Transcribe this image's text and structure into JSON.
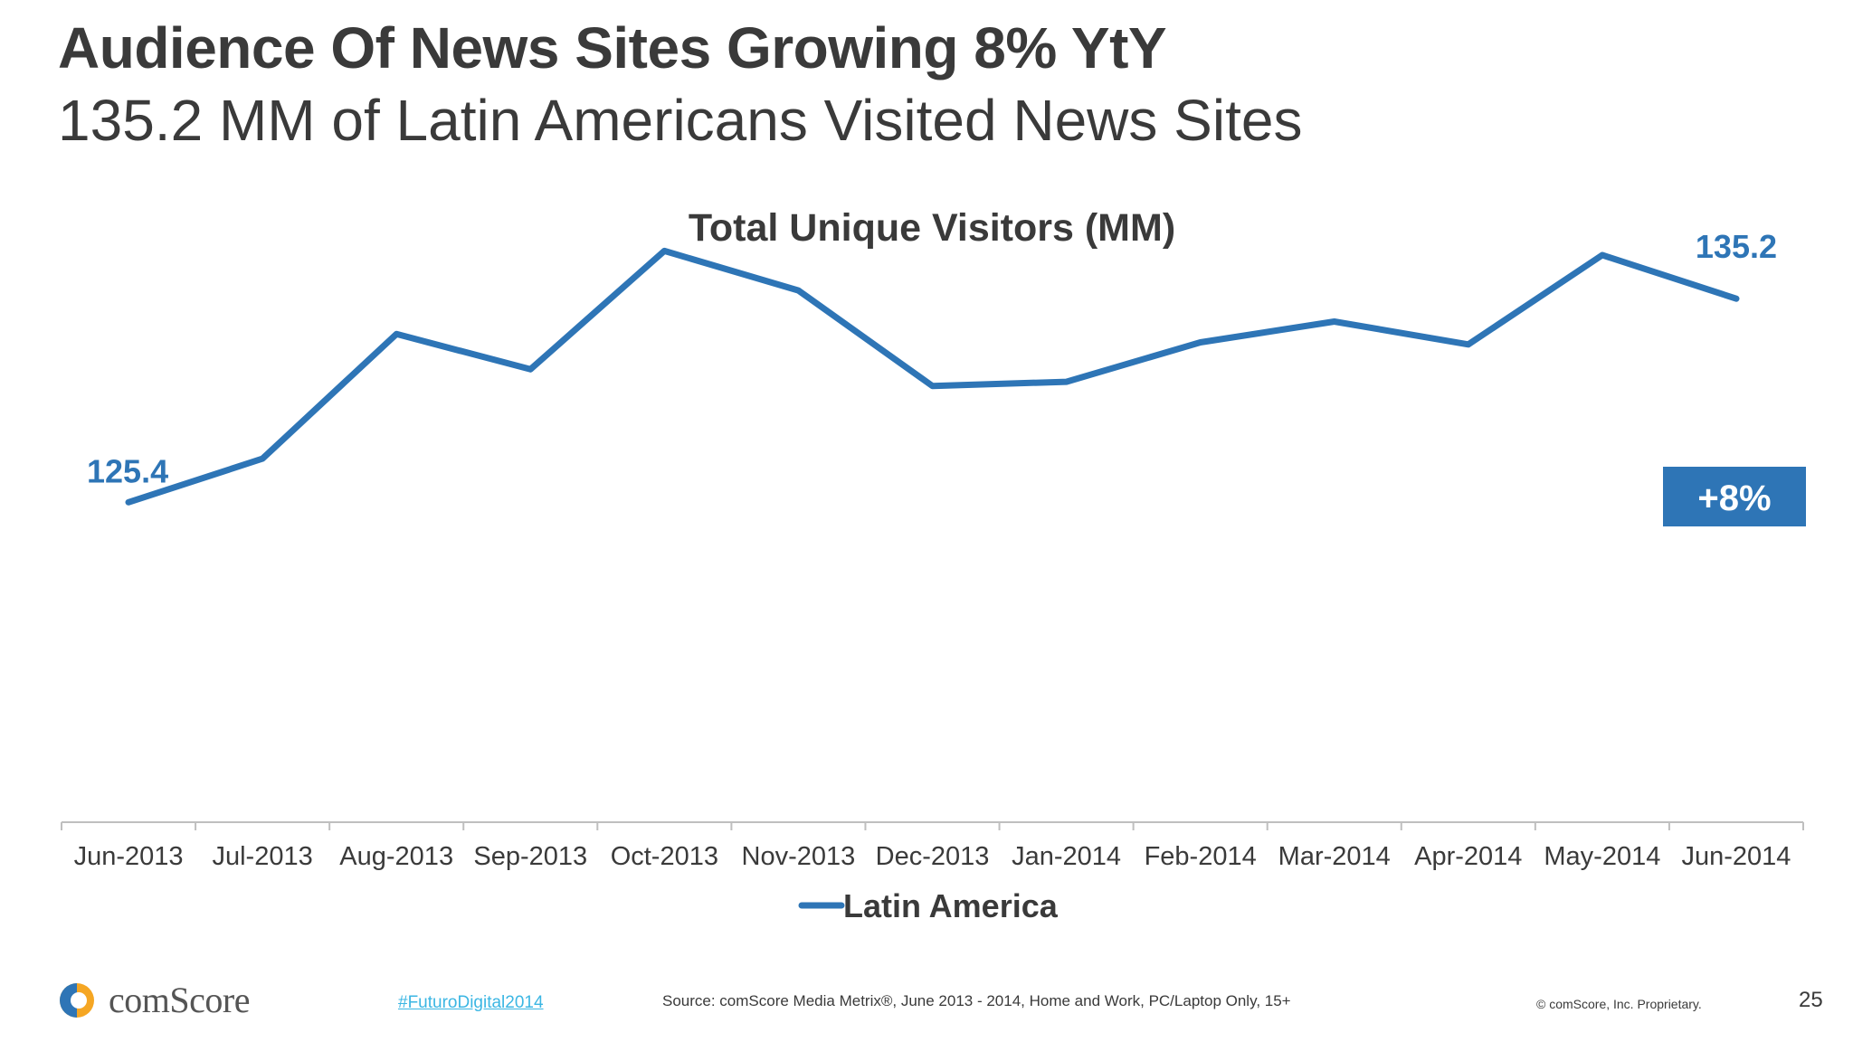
{
  "slide": {
    "title": "Audience Of News Sites Growing 8% YtY",
    "subtitle": "135.2 MM of Latin Americans Visited News Sites"
  },
  "chart_data": {
    "type": "line",
    "title": "Total Unique Visitors (MM)",
    "categories": [
      "Jun-2013",
      "Jul-2013",
      "Aug-2013",
      "Sep-2013",
      "Oct-2013",
      "Nov-2013",
      "Dec-2013",
      "Jan-2014",
      "Feb-2014",
      "Mar-2014",
      "Apr-2014",
      "May-2014",
      "Jun-2014"
    ],
    "series": [
      {
        "name": "Latin America",
        "color": "#2e75b6",
        "values": [
          125.4,
          127.5,
          133.5,
          131.8,
          137.5,
          135.6,
          131.0,
          131.2,
          133.1,
          134.1,
          133.0,
          137.3,
          135.2
        ]
      }
    ],
    "data_labels": [
      {
        "index": 0,
        "text": "125.4"
      },
      {
        "index": 12,
        "text": "135.2"
      }
    ],
    "callout": {
      "text": "+8%",
      "color": "#2e75b6"
    },
    "ylim": [
      110,
      140
    ],
    "grid": false,
    "legend": "bottom-center",
    "xlabel": "",
    "ylabel": ""
  },
  "footer": {
    "hashtag": "#FuturoDigital2014",
    "source": "Source: comScore Media Metrix®, June 2013 - 2014, Home and Work, PC/Laptop Only, 15+",
    "copyright": "© comScore, Inc. Proprietary.",
    "page_number": "25",
    "logo_text": "comScore",
    "logo_icon": "comscore-logo-icon"
  }
}
